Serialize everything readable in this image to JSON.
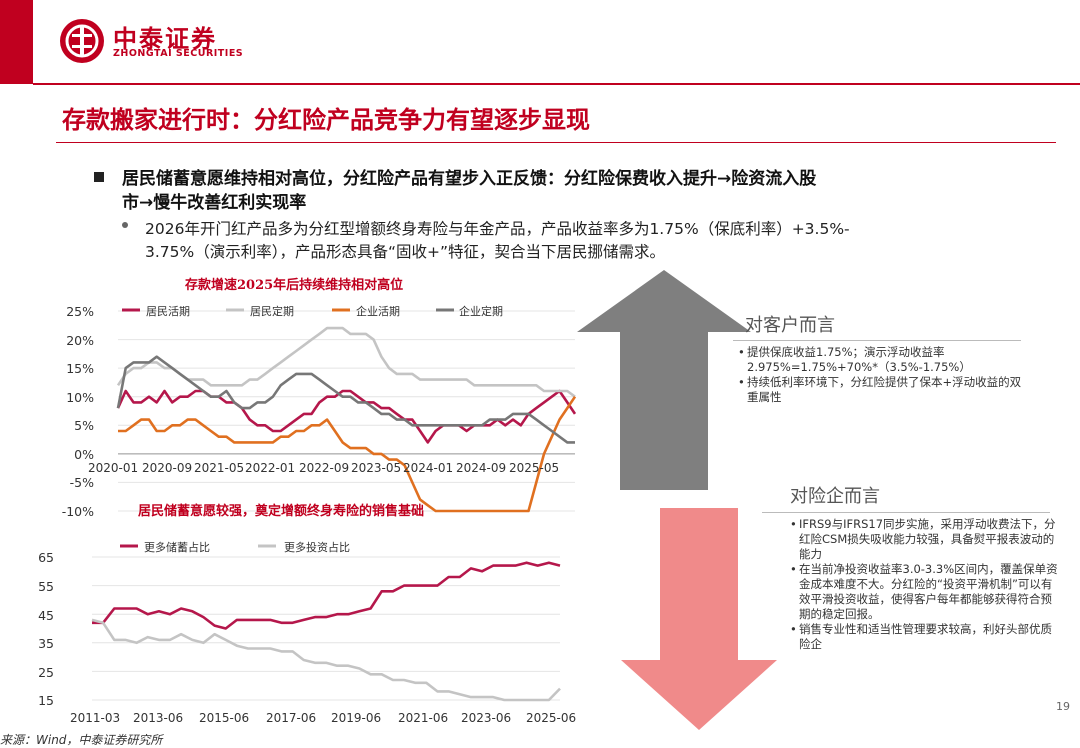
{
  "header": {
    "brand_cn": "中泰证券",
    "brand_en": "ZHONGTAI SECURITIES"
  },
  "colors": {
    "brand_red": "#c0001f",
    "grey_arrow": "#7f7f7f",
    "pink_arrow": "#f08a8a"
  },
  "title": "存款搬家进行时：分红险产品竞争力有望逐步显现",
  "bullet": {
    "line1": "居民储蓄意愿维持相对高位，分红险产品有望步入正反馈：分红险保费收入提升→险资流入股",
    "line2": "市→慢牛改善红利实现率",
    "sub_line1": "2026年开门红产品多为分红型增额终身寿险与年金产品，产品收益率多为1.75%（保底利率）+3.5%-",
    "sub_line2": "3.75%（演示利率），产品形态具备“固收+”特征，契合当下居民挪储需求。"
  },
  "chart_data": [
    {
      "type": "line",
      "title": "存款增速2025年后持续维持相对高位",
      "ylim": [
        -10,
        25
      ],
      "y_ticks": [
        "25%",
        "20%",
        "15%",
        "10%",
        "5%",
        "0%",
        "-5%",
        "-10%"
      ],
      "x_ticks": [
        "2020-01",
        "2020-09",
        "2021-05",
        "2022-01",
        "2022-09",
        "2023-05",
        "2024-01",
        "2024-09",
        "2025-05"
      ],
      "legend": "top",
      "series": [
        {
          "name": "居民活期",
          "color": "#b5174b",
          "values": [
            8,
            11,
            9,
            9,
            10,
            9,
            11,
            9,
            10,
            10,
            11,
            11,
            10,
            10,
            9,
            9,
            8,
            6,
            5,
            5,
            4,
            4,
            5,
            6,
            7,
            7,
            9,
            10,
            10,
            11,
            11,
            10,
            9,
            9,
            8,
            8,
            7,
            6,
            6,
            4,
            2,
            4,
            5,
            5,
            5,
            4,
            5,
            5,
            5,
            6,
            5,
            6,
            5,
            7,
            8,
            9,
            10,
            11,
            9,
            7
          ]
        },
        {
          "name": "居民定期",
          "color": "#c4c4c4",
          "values": [
            12,
            14,
            15,
            15,
            16,
            16,
            15,
            15,
            14,
            13,
            13,
            13,
            12,
            12,
            12,
            12,
            12,
            13,
            13,
            14,
            15,
            16,
            17,
            18,
            19,
            20,
            21,
            22,
            22,
            22,
            21,
            21,
            21,
            20,
            17,
            15,
            14,
            14,
            14,
            13,
            13,
            13,
            13,
            13,
            13,
            13,
            12,
            12,
            12,
            12,
            12,
            12,
            12,
            12,
            12,
            11,
            11,
            11,
            11,
            10
          ]
        },
        {
          "name": "企业活期",
          "color": "#e07020",
          "values": [
            4,
            4,
            5,
            6,
            6,
            4,
            4,
            5,
            5,
            6,
            6,
            5,
            4,
            3,
            3,
            2,
            2,
            2,
            2,
            2,
            2,
            3,
            3,
            4,
            4,
            5,
            5,
            6,
            4,
            2,
            1,
            1,
            1,
            0,
            0,
            -1,
            -1,
            -2,
            -5,
            -8,
            -9,
            -10,
            -10,
            -10,
            -10,
            -10,
            -10,
            -10,
            -10,
            -10,
            -10,
            -10,
            -10,
            -10,
            -5,
            0,
            3,
            6,
            8,
            10
          ]
        },
        {
          "name": "企业定期",
          "color": "#777777",
          "values": [
            8,
            15,
            16,
            16,
            16,
            17,
            16,
            15,
            14,
            13,
            12,
            11,
            10,
            10,
            11,
            9,
            8,
            8,
            9,
            9,
            10,
            12,
            13,
            14,
            14,
            14,
            13,
            12,
            11,
            10,
            10,
            9,
            9,
            8,
            7,
            7,
            6,
            6,
            5,
            5,
            5,
            5,
            5,
            5,
            5,
            5,
            5,
            5,
            6,
            6,
            6,
            7,
            7,
            7,
            6,
            5,
            4,
            3,
            2,
            2
          ]
        }
      ]
    },
    {
      "type": "line",
      "title": "居民储蓄意愿较强，奠定增额终身寿险的销售基础",
      "ylim": [
        15,
        65
      ],
      "y_ticks": [
        "65",
        "55",
        "45",
        "35",
        "25",
        "15"
      ],
      "x_ticks": [
        "2011-03",
        "2013-06",
        "2015-06",
        "2017-06",
        "2019-06",
        "2021-06",
        "2023-06",
        "2025-06"
      ],
      "legend": "top",
      "series": [
        {
          "name": "更多储蓄占比",
          "color": "#b5174b",
          "values": [
            42,
            42,
            47,
            47,
            47,
            45,
            46,
            45,
            47,
            46,
            44,
            41,
            40,
            43,
            43,
            43,
            43,
            42,
            42,
            43,
            44,
            44,
            45,
            45,
            46,
            47,
            53,
            53,
            55,
            55,
            55,
            55,
            58,
            58,
            61,
            60,
            62,
            62,
            62,
            63,
            62,
            63,
            62
          ]
        },
        {
          "name": "更多投资占比",
          "color": "#c4c4c4",
          "values": [
            43,
            42,
            36,
            36,
            35,
            37,
            36,
            36,
            38,
            36,
            35,
            38,
            36,
            34,
            33,
            33,
            33,
            32,
            32,
            29,
            28,
            28,
            27,
            27,
            26,
            24,
            24,
            22,
            22,
            21,
            21,
            18,
            18,
            17,
            16,
            16,
            16,
            15,
            15,
            15,
            15,
            15,
            19
          ]
        }
      ]
    }
  ],
  "panel_customer": {
    "heading": "对客户而言",
    "items": [
      "提供保底收益1.75%；演示浮动收益率2.975%=1.75%+70%*（3.5%-1.75%）",
      "持续低利率环境下，分红险提供了保本+浮动收益的双重属性"
    ]
  },
  "panel_insurer": {
    "heading": "对险企而言",
    "items": [
      "IFRS9与IFRS17同步实施，采用浮动收费法下，分红险CSM损失吸收能力较强，具备熨平报表波动的能力",
      "在当前净投资收益率3.0-3.3%区间内，覆盖保单资金成本难度不大。分红险的“投资平滑机制”可以有效平滑投资收益，使得客户每年都能够获得符合预期的稳定回报。",
      "销售专业性和适当性管理要求较高，利好头部优质险企"
    ]
  },
  "source": "来源：Wind，中泰证券研究所",
  "page_number": "19"
}
